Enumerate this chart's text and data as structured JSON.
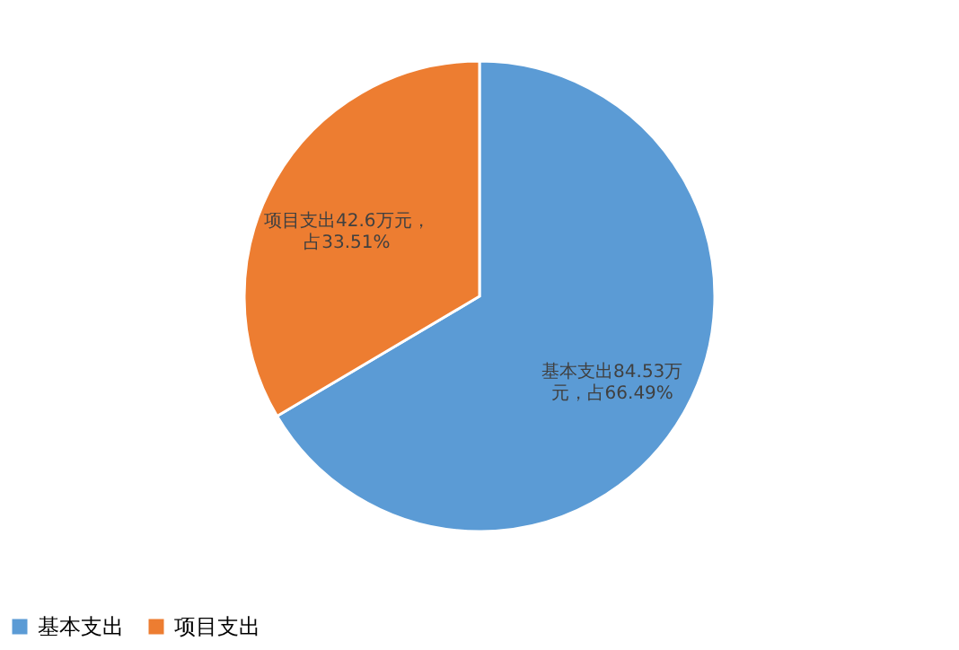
{
  "chart_data": {
    "type": "pie",
    "categories": [
      "基本支出",
      "项目支出"
    ],
    "values": [
      66.49,
      33.51
    ],
    "colors": [
      "#5b9bd5",
      "#ed7d31"
    ],
    "value_labels": [
      "基本支出84.53万元，占66.49%",
      "项目支出42.6万元，占33.51%"
    ],
    "legend": "bottom"
  }
}
